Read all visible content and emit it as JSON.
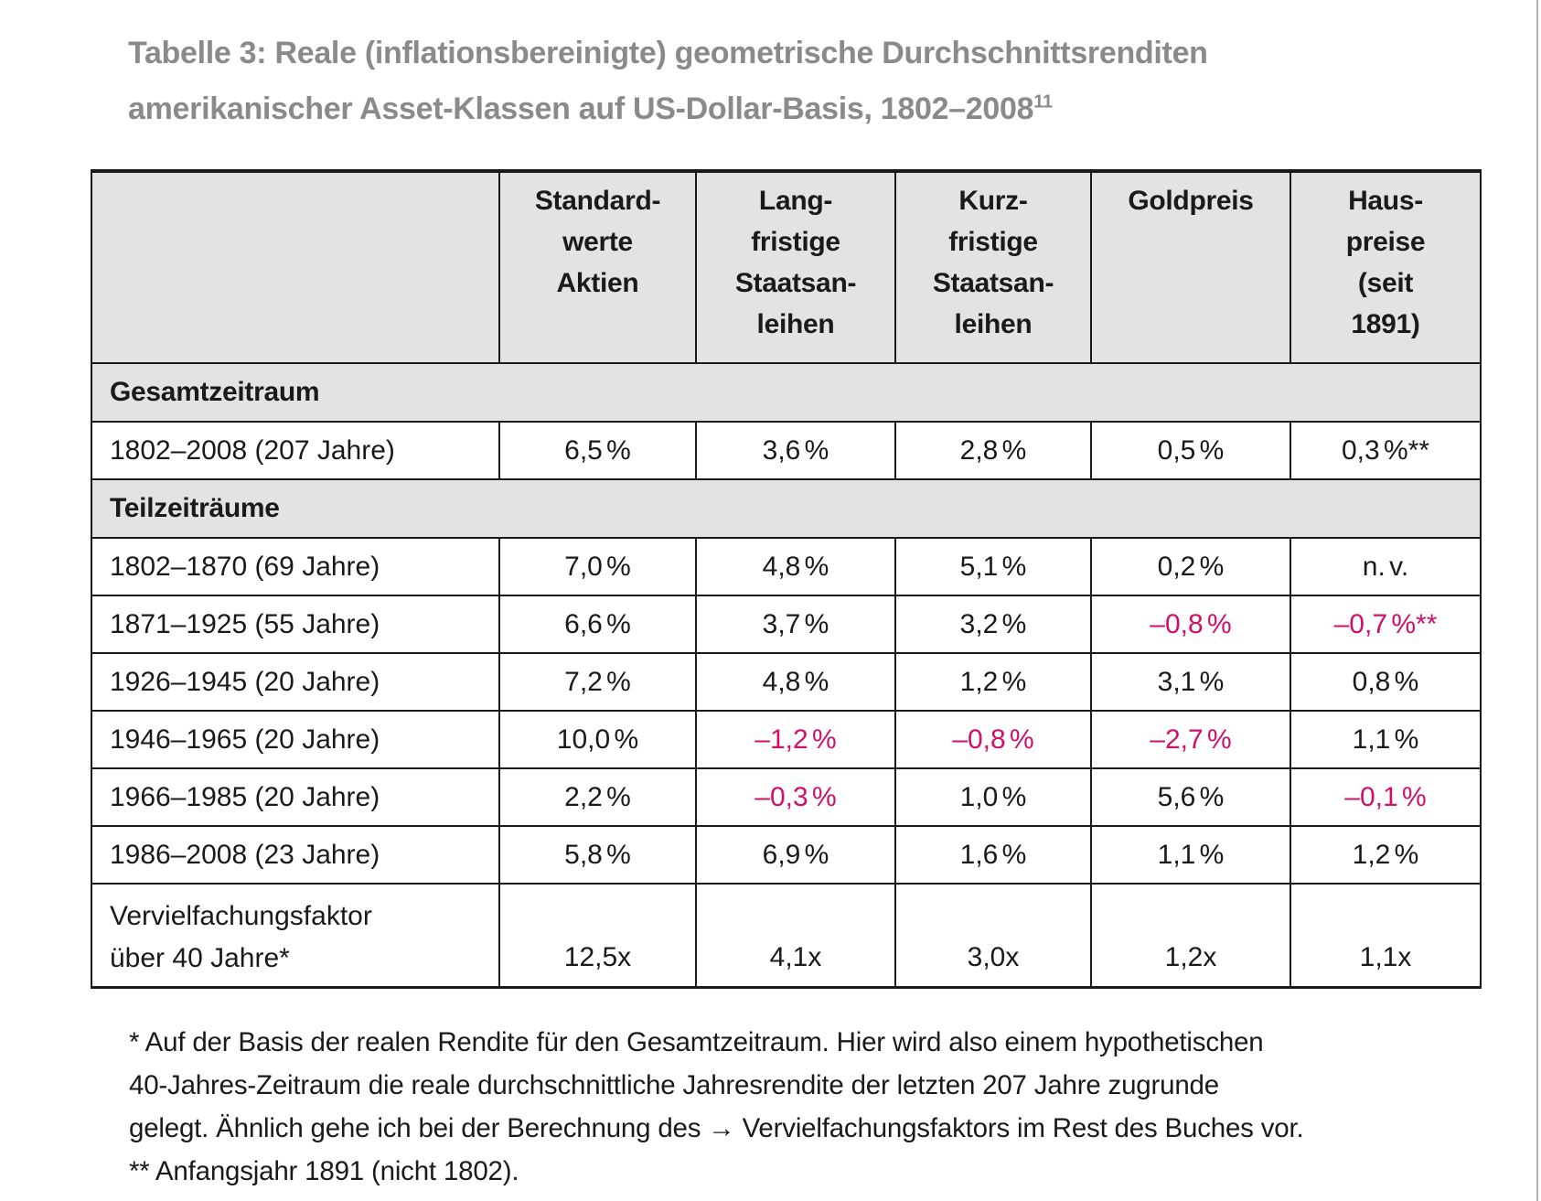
{
  "colors": {
    "negative_value": "#d01068",
    "title_gray": "#8a8a8a",
    "table_fill_gray": "#e3e3e2",
    "border_black": "#1a1a1a",
    "page_edge_gray": "#b3b3b3"
  },
  "title": {
    "line1": "Tabelle 3: Reale (inflationsbereinigte) geometrische Durchschnittsrenditen",
    "line2": "amerikanischer Asset-Klassen auf US-Dollar-Basis, 1802–2008",
    "footnote_ref": "11"
  },
  "table": {
    "header": [
      {
        "lines": []
      },
      {
        "lines": [
          "Standard-",
          "werte",
          "Aktien"
        ]
      },
      {
        "lines": [
          "Lang-",
          "fristige",
          "Staatsan-",
          "leihen"
        ]
      },
      {
        "lines": [
          "Kurz-",
          "fristige",
          "Staatsan-",
          "leihen"
        ]
      },
      {
        "lines": [
          "Goldpreis"
        ]
      },
      {
        "lines": [
          "Haus-",
          "preise",
          "(seit",
          "1891)"
        ]
      }
    ],
    "rows": [
      {
        "type": "section",
        "label": "Gesamtzeitraum"
      },
      {
        "type": "data",
        "label": "1802–2008 (207 Jahre)",
        "cells": [
          {
            "t": "6,5 %"
          },
          {
            "t": "3,6 %"
          },
          {
            "t": "2,8 %"
          },
          {
            "t": "0,5 %"
          },
          {
            "t": "0,3 %**"
          }
        ]
      },
      {
        "type": "section",
        "label": "Teilzeiträume"
      },
      {
        "type": "data",
        "label": "1802–1870 (69 Jahre)",
        "cells": [
          {
            "t": "7,0 %"
          },
          {
            "t": "4,8 %"
          },
          {
            "t": "5,1 %"
          },
          {
            "t": "0,2 %"
          },
          {
            "t": "n. v."
          }
        ]
      },
      {
        "type": "data",
        "label": "1871–1925 (55 Jahre)",
        "cells": [
          {
            "t": "6,6 %"
          },
          {
            "t": "3,7 %"
          },
          {
            "t": "3,2 %"
          },
          {
            "t": "–0,8 %",
            "neg": true
          },
          {
            "t": "–0,7 %**",
            "neg": true
          }
        ]
      },
      {
        "type": "data",
        "label": "1926–1945 (20 Jahre)",
        "cells": [
          {
            "t": "7,2 %"
          },
          {
            "t": "4,8 %"
          },
          {
            "t": "1,2 %"
          },
          {
            "t": "3,1 %"
          },
          {
            "t": "0,8 %"
          }
        ]
      },
      {
        "type": "data",
        "label": "1946–1965 (20 Jahre)",
        "cells": [
          {
            "t": "10,0 %"
          },
          {
            "t": "–1,2 %",
            "neg": true
          },
          {
            "t": "–0,8 %",
            "neg": true
          },
          {
            "t": "–2,7 %",
            "neg": true
          },
          {
            "t": "1,1 %"
          }
        ]
      },
      {
        "type": "data",
        "label": "1966–1985 (20 Jahre)",
        "cells": [
          {
            "t": "2,2 %"
          },
          {
            "t": "–0,3 %",
            "neg": true
          },
          {
            "t": "1,0 %"
          },
          {
            "t": "5,6 %"
          },
          {
            "t": "–0,1 %",
            "neg": true
          }
        ]
      },
      {
        "type": "data",
        "label": "1986–2008 (23 Jahre)",
        "cells": [
          {
            "t": "5,8 %"
          },
          {
            "t": "6,9 %"
          },
          {
            "t": "1,6 %"
          },
          {
            "t": "1,1 %"
          },
          {
            "t": "1,2 %"
          }
        ]
      },
      {
        "type": "data",
        "tall": true,
        "label_lines": [
          "Vervielfachungsfaktor",
          "über 40 Jahre*"
        ],
        "cells": [
          {
            "t": "12,5x"
          },
          {
            "t": "4,1x"
          },
          {
            "t": "3,0x"
          },
          {
            "t": "1,2x"
          },
          {
            "t": "1,1x"
          }
        ]
      }
    ]
  },
  "footnote": {
    "lines": [
      "* Auf der Basis der realen Rendite für den Gesamtzeitraum. Hier wird also einem hypothetischen",
      "40-Jahres-Zeitraum die reale durchschnittliche Jahresrendite der letzten 207 Jahre zugrunde",
      "gelegt. Ähnlich gehe ich bei der Berechnung des → Vervielfachungsfaktors im Rest des Buches vor.",
      "** Anfangsjahr 1891 (nicht 1802)."
    ]
  }
}
